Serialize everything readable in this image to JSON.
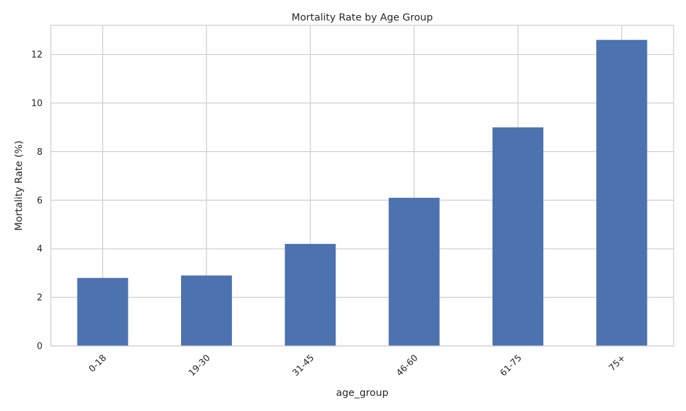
{
  "chart_data": {
    "type": "bar",
    "title": "Mortality Rate by Age Group",
    "xlabel": "age_group",
    "ylabel": "Mortality Rate (%)",
    "categories": [
      "0-18",
      "19-30",
      "31-45",
      "46-60",
      "61-75",
      "75+"
    ],
    "values": [
      2.8,
      2.9,
      4.2,
      6.1,
      9.0,
      12.6
    ],
    "ylim": [
      0,
      13.2
    ],
    "yticks": [
      0,
      2,
      4,
      6,
      8,
      10,
      12
    ],
    "grid": true,
    "legend": "none",
    "colors": {
      "bar": "#4c72b0",
      "grid": "#cccccc",
      "text": "#262626"
    }
  }
}
